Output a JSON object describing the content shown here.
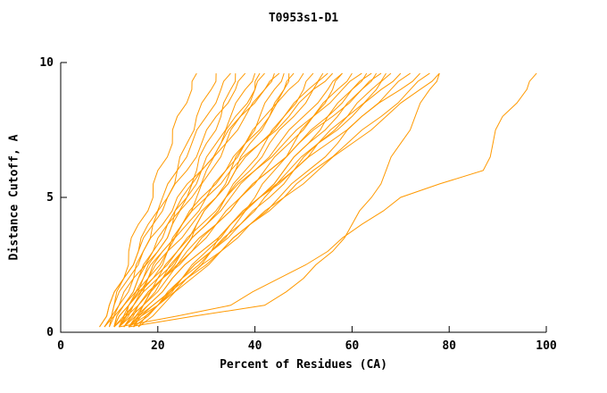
{
  "chart_data": {
    "type": "line",
    "title": "T0953s1-D1",
    "xlabel": "Percent of Residues (CA)",
    "ylabel": "Distance Cutoff, A",
    "xlim": [
      0,
      100
    ],
    "ylim": [
      0,
      10
    ],
    "x_ticks": [
      0,
      20,
      40,
      60,
      80,
      100
    ],
    "y_ticks": [
      0,
      5,
      10
    ],
    "grid": false,
    "legend": "none",
    "line_color": "#FF9900",
    "axis_color": "#000000",
    "y_levels": [
      0.2,
      1,
      2,
      3,
      4,
      5,
      6,
      7,
      8,
      9,
      9.6
    ],
    "series_x": [
      [
        8,
        10,
        13,
        14,
        16,
        19,
        20,
        23,
        24,
        27,
        28
      ],
      [
        10,
        12,
        15,
        17,
        19,
        22,
        24,
        26,
        28,
        31,
        32
      ],
      [
        8,
        10,
        13,
        16,
        18,
        21,
        24,
        27,
        30,
        33,
        35
      ],
      [
        11,
        14,
        17,
        20,
        23,
        25,
        28,
        30,
        33,
        35,
        36
      ],
      [
        9,
        11,
        13,
        16,
        19,
        22,
        26,
        29,
        32,
        36,
        38
      ],
      [
        11,
        13,
        16,
        19,
        22,
        26,
        29,
        32,
        35,
        38,
        40
      ],
      [
        12,
        15,
        19,
        22,
        25,
        28,
        31,
        34,
        37,
        40,
        42
      ],
      [
        10,
        13,
        16,
        20,
        23,
        27,
        30,
        34,
        38,
        42,
        44
      ],
      [
        9,
        11,
        14,
        17,
        21,
        24,
        29,
        33,
        37,
        42,
        45
      ],
      [
        13,
        17,
        21,
        25,
        28,
        32,
        35,
        38,
        41,
        44,
        46
      ],
      [
        11,
        14,
        18,
        22,
        26,
        30,
        34,
        38,
        42,
        46,
        48
      ],
      [
        12,
        15,
        18,
        21,
        25,
        29,
        34,
        38,
        43,
        47,
        50
      ],
      [
        12,
        16,
        21,
        25,
        30,
        34,
        38,
        42,
        46,
        50,
        52
      ],
      [
        11,
        14,
        18,
        22,
        27,
        32,
        36,
        41,
        46,
        51,
        54
      ],
      [
        13,
        17,
        21,
        25,
        30,
        34,
        39,
        43,
        48,
        52,
        55
      ],
      [
        11,
        13,
        17,
        21,
        25,
        30,
        35,
        41,
        47,
        52,
        56
      ],
      [
        15,
        20,
        26,
        31,
        35,
        40,
        44,
        48,
        52,
        56,
        58
      ],
      [
        13,
        17,
        22,
        27,
        32,
        37,
        42,
        47,
        52,
        57,
        60
      ],
      [
        12,
        14,
        19,
        24,
        29,
        34,
        40,
        46,
        52,
        58,
        62
      ],
      [
        14,
        20,
        25,
        31,
        36,
        41,
        46,
        51,
        55,
        60,
        63
      ],
      [
        13,
        16,
        21,
        27,
        32,
        37,
        43,
        49,
        55,
        60,
        64
      ],
      [
        15,
        19,
        25,
        30,
        35,
        41,
        46,
        51,
        57,
        62,
        65
      ],
      [
        14,
        17,
        21,
        26,
        32,
        37,
        43,
        49,
        56,
        62,
        66
      ],
      [
        14,
        19,
        25,
        31,
        37,
        43,
        48,
        53,
        59,
        64,
        67
      ],
      [
        15,
        20,
        25,
        31,
        37,
        42,
        48,
        53,
        59,
        65,
        68
      ],
      [
        14,
        18,
        23,
        29,
        35,
        41,
        47,
        53,
        60,
        66,
        70
      ],
      [
        16,
        21,
        27,
        33,
        39,
        45,
        51,
        57,
        62,
        68,
        72
      ],
      [
        15,
        18,
        23,
        29,
        35,
        41,
        48,
        55,
        62,
        70,
        74
      ],
      [
        14,
        20,
        26,
        33,
        39,
        46,
        52,
        59,
        66,
        72,
        76
      ],
      [
        16,
        20,
        26,
        33,
        39,
        46,
        53,
        60,
        67,
        74,
        78
      ],
      [
        12,
        35,
        45,
        55,
        62,
        70,
        87,
        89,
        91,
        96,
        98
      ],
      [
        14,
        42,
        50,
        56,
        60,
        64,
        67,
        70,
        73,
        76,
        78
      ],
      [
        11,
        15,
        20,
        25,
        30,
        35,
        40,
        45,
        50,
        55,
        58
      ],
      [
        12,
        16,
        20,
        24,
        28,
        32,
        36,
        39,
        43,
        46,
        47
      ],
      [
        9,
        12,
        15,
        19,
        22,
        26,
        29,
        33,
        36,
        40,
        41
      ]
    ]
  }
}
